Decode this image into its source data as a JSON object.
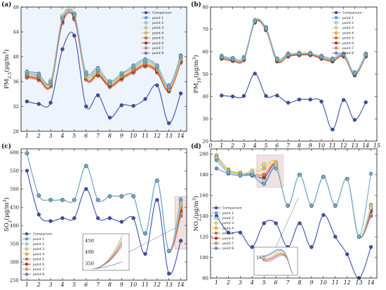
{
  "colors": {
    "Comparison": "#3a4fb0",
    "point 1": "#6aaed6",
    "point 2": "#a9dff0",
    "point 3": "#e8e27a",
    "point 4": "#f0c050",
    "point 5": "#e07a3a",
    "point 6": "#c0302a",
    "point 7": "#d89a88",
    "point 8": "#7a86c8"
  },
  "chart_data": [
    {
      "panel": "(a)",
      "type": "line",
      "ylabel": "PM2.5(μg/m3)",
      "ylim": [
        28,
        48
      ],
      "yticks": [
        28,
        32,
        36,
        40,
        44,
        48
      ],
      "x": [
        1,
        2,
        3,
        4,
        5,
        6,
        7,
        8,
        9,
        10,
        11,
        12,
        13,
        14
      ],
      "xlim": [
        0.5,
        14.5
      ],
      "xticks": [
        1,
        2,
        3,
        4,
        5,
        6,
        7,
        8,
        9,
        10,
        11,
        12,
        13,
        14
      ],
      "legend": [
        "Comparison",
        "point 1",
        "point 2",
        "point 3",
        "point 4",
        "point 5",
        "point 6",
        "point 7",
        "point 8"
      ],
      "legend_position": "top-right",
      "background": "#eef4fb",
      "series": [
        {
          "name": "Comparison",
          "values": [
            32.8,
            32.4,
            32.6,
            41.2,
            43.4,
            32.0,
            33.8,
            30.2,
            32.2,
            32.1,
            33.2,
            35.4,
            29.3,
            34.1
          ]
        },
        {
          "name": "point 1",
          "values": [
            37.3,
            37.0,
            35.9,
            46.1,
            46.7,
            37.2,
            37.8,
            35.9,
            37.2,
            38.3,
            39.3,
            38.3,
            35.1,
            40.1
          ]
        },
        {
          "name": "point 2",
          "values": [
            37.5,
            37.2,
            36.2,
            46.3,
            46.9,
            37.4,
            38.1,
            36.1,
            37.4,
            38.5,
            39.5,
            38.5,
            35.3,
            40.0
          ]
        },
        {
          "name": "point 3",
          "values": [
            37.2,
            36.9,
            35.8,
            46.6,
            47.0,
            37.0,
            37.7,
            35.7,
            37.1,
            38.2,
            39.2,
            38.2,
            35.0,
            39.8
          ]
        },
        {
          "name": "point 4",
          "values": [
            37.1,
            36.8,
            35.6,
            46.3,
            46.8,
            36.8,
            37.5,
            35.6,
            36.9,
            38.0,
            39.0,
            38.0,
            34.8,
            39.6
          ]
        },
        {
          "name": "point 5",
          "values": [
            36.9,
            36.6,
            35.5,
            46.0,
            46.6,
            36.6,
            37.3,
            35.5,
            36.7,
            37.8,
            38.8,
            37.8,
            34.6,
            39.4
          ]
        },
        {
          "name": "point 6",
          "values": [
            36.8,
            36.4,
            35.4,
            45.6,
            46.3,
            36.5,
            37.1,
            35.3,
            36.5,
            37.6,
            38.6,
            37.6,
            34.5,
            39.2
          ]
        },
        {
          "name": "point 7",
          "values": [
            36.6,
            36.2,
            35.2,
            45.4,
            46.1,
            36.3,
            36.9,
            35.1,
            36.3,
            37.4,
            38.4,
            37.4,
            34.4,
            39.0
          ]
        },
        {
          "name": "point 8",
          "values": [
            37.6,
            37.3,
            36.0,
            46.5,
            46.0,
            37.5,
            38.2,
            36.0,
            37.3,
            38.6,
            39.6,
            38.6,
            35.4,
            40.2
          ]
        }
      ]
    },
    {
      "panel": "(b)",
      "type": "line",
      "ylabel": "PM10(μg/m3)",
      "ylim": [
        20,
        80
      ],
      "yticks": [
        20,
        30,
        40,
        50,
        60,
        70,
        80
      ],
      "x": [
        1,
        2,
        3,
        4,
        5,
        6,
        7,
        8,
        9,
        10,
        11,
        12,
        13,
        14
      ],
      "xlim": [
        0,
        15
      ],
      "xticks": [
        0,
        1,
        2,
        3,
        4,
        5,
        6,
        7,
        8,
        9,
        10,
        11,
        12,
        13,
        14,
        15
      ],
      "legend": [
        "Comparison",
        "point 1",
        "point 2",
        "point 3",
        "point 4",
        "point 5",
        "point 6",
        "point 7",
        "point 8"
      ],
      "legend_position": "top-right",
      "background": "#ffffff",
      "series": [
        {
          "name": "Comparison",
          "values": [
            40.4,
            40.0,
            40.2,
            50.2,
            40.2,
            40.4,
            37.2,
            38.6,
            38.6,
            37.7,
            25.2,
            38.4,
            29.5,
            37.4
          ]
        },
        {
          "name": "point 1",
          "values": [
            57.6,
            56.6,
            57.0,
            73.6,
            70.4,
            56.4,
            58.6,
            59.0,
            59.0,
            57.6,
            56.4,
            58.6,
            50.2,
            58.6
          ]
        },
        {
          "name": "point 2",
          "values": [
            58.0,
            57.0,
            57.4,
            74.0,
            70.8,
            56.8,
            59.0,
            59.4,
            59.4,
            58.0,
            56.8,
            59.0,
            50.6,
            59.0
          ]
        },
        {
          "name": "point 3",
          "values": [
            57.8,
            56.8,
            57.2,
            74.2,
            70.6,
            56.6,
            58.8,
            59.6,
            59.6,
            57.8,
            56.6,
            58.8,
            50.4,
            58.8
          ]
        },
        {
          "name": "point 4",
          "values": [
            57.4,
            56.4,
            56.8,
            73.8,
            70.2,
            56.2,
            58.4,
            59.2,
            59.2,
            57.4,
            56.2,
            58.4,
            50.0,
            58.4
          ]
        },
        {
          "name": "point 5",
          "values": [
            57.2,
            56.2,
            56.6,
            73.4,
            70.0,
            56.0,
            58.2,
            58.8,
            58.8,
            57.2,
            56.0,
            58.2,
            49.8,
            58.2
          ]
        },
        {
          "name": "point 6",
          "values": [
            57.0,
            56.0,
            56.4,
            73.2,
            69.8,
            55.8,
            58.0,
            58.6,
            58.6,
            57.0,
            55.8,
            58.0,
            49.6,
            58.0
          ]
        },
        {
          "name": "point 7",
          "values": [
            56.8,
            55.8,
            56.2,
            73.0,
            69.6,
            55.6,
            57.8,
            58.4,
            58.4,
            56.8,
            55.6,
            57.8,
            49.4,
            57.8
          ]
        },
        {
          "name": "point 8",
          "values": [
            58.2,
            57.2,
            57.6,
            73.6,
            71.0,
            57.0,
            59.2,
            59.0,
            59.0,
            58.2,
            57.0,
            59.2,
            50.8,
            59.2
          ]
        }
      ]
    },
    {
      "panel": "(c)",
      "type": "line",
      "ylabel": "SO2(μg/m3)",
      "ylim": [
        250,
        610
      ],
      "yticks": [
        250,
        300,
        350,
        400,
        450,
        500,
        550,
        600
      ],
      "x": [
        1,
        2,
        3,
        4,
        5,
        6,
        7,
        8,
        9,
        10,
        11,
        12,
        13,
        14
      ],
      "xlim": [
        0.5,
        14.5
      ],
      "xticks": [
        1,
        2,
        3,
        4,
        5,
        6,
        7,
        8,
        9,
        10,
        11,
        12,
        13,
        14
      ],
      "legend": [
        "Comparison",
        "point 1",
        "point 2",
        "point 3",
        "point 4",
        "point 5",
        "point 6",
        "point 7",
        "point 8"
      ],
      "legend_position": "bottom-left",
      "background": "#ffffff",
      "highlight_box": {
        "x": [
          13.5,
          14.5
        ],
        "y": [
          335,
          480
        ]
      },
      "inset_yticks": [
        350,
        400,
        450
      ],
      "series": [
        {
          "name": "Comparison",
          "values": [
            550,
            430,
            412,
            420,
            420,
            500,
            420,
            420,
            410,
            420,
            322,
            470,
            268,
            358
          ]
        },
        {
          "name": "point 1",
          "values": [
            598,
            482,
            470,
            470,
            470,
            563,
            470,
            480,
            480,
            480,
            378,
            523,
            330,
            472
          ]
        },
        {
          "name": "point 2",
          "values": [
            598,
            482,
            470,
            470,
            470,
            563,
            470,
            480,
            480,
            480,
            378,
            523,
            330,
            468
          ]
        },
        {
          "name": "point 3",
          "values": [
            598,
            482,
            470,
            470,
            470,
            563,
            470,
            480,
            480,
            480,
            378,
            523,
            330,
            462
          ]
        },
        {
          "name": "point 4",
          "values": [
            598,
            482,
            470,
            470,
            470,
            563,
            470,
            480,
            480,
            480,
            378,
            523,
            330,
            455
          ]
        },
        {
          "name": "point 5",
          "values": [
            598,
            482,
            470,
            470,
            470,
            563,
            470,
            480,
            480,
            480,
            378,
            523,
            330,
            448
          ]
        },
        {
          "name": "point 6",
          "values": [
            598,
            482,
            470,
            470,
            470,
            563,
            470,
            480,
            480,
            480,
            378,
            523,
            330,
            440
          ]
        },
        {
          "name": "point 7",
          "values": [
            598,
            482,
            470,
            470,
            470,
            563,
            470,
            480,
            480,
            480,
            378,
            523,
            330,
            433
          ]
        },
        {
          "name": "point 8",
          "values": [
            598,
            482,
            470,
            470,
            470,
            563,
            470,
            480,
            480,
            480,
            378,
            523,
            330,
            426
          ]
        }
      ]
    },
    {
      "panel": "(d)",
      "type": "line",
      "ylabel": "NO2(μg/m3)",
      "ylim": [
        80,
        205
      ],
      "yticks": [
        80,
        100,
        120,
        140,
        160,
        180,
        200
      ],
      "x": [
        1,
        2,
        3,
        4,
        5,
        6,
        7,
        8,
        9,
        10,
        11,
        12,
        13,
        14
      ],
      "xlim": [
        0.5,
        14.5
      ],
      "xticks": [
        1,
        2,
        3,
        4,
        5,
        6,
        7,
        8,
        9,
        10,
        11,
        12,
        13,
        14
      ],
      "legend": [
        "Comparison",
        "point 1",
        "point 2",
        "point 3",
        "point 4",
        "point 5",
        "point 6",
        "point 7",
        "point 8"
      ],
      "legend_position": "middle-left",
      "background": "#ffffff",
      "highlight_box": {
        "x": [
          4.4,
          6.6
        ],
        "y": [
          168,
          199
        ]
      },
      "inset_label": "166",
      "series": [
        {
          "name": "Comparison",
          "values": [
            140,
            124,
            124,
            110,
            133,
            133,
            110,
            133,
            110,
            141,
            120,
            103,
            80,
            110
          ]
        },
        {
          "name": "point 1",
          "values": [
            194,
            182,
            179,
            180,
            171,
            186,
            150,
            180,
            150,
            178,
            150,
            176,
            120,
            181
          ]
        },
        {
          "name": "point 2",
          "values": [
            196,
            183,
            180,
            182,
            174,
            188,
            150,
            180,
            150,
            178,
            150,
            176,
            120,
            148
          ]
        },
        {
          "name": "point 3",
          "values": [
            197,
            184,
            181,
            184,
            190,
            190,
            150,
            180,
            150,
            178,
            150,
            176,
            120,
            150
          ]
        },
        {
          "name": "point 4",
          "values": [
            199,
            185,
            182,
            182,
            186,
            192,
            150,
            180,
            150,
            178,
            150,
            176,
            120,
            151
          ]
        },
        {
          "name": "point 5",
          "values": [
            198,
            185,
            181,
            181,
            180,
            190,
            150,
            180,
            150,
            178,
            150,
            176,
            120,
            147
          ]
        },
        {
          "name": "point 6",
          "values": [
            197,
            184,
            181,
            180,
            177,
            189,
            150,
            180,
            150,
            178,
            150,
            176,
            120,
            145
          ]
        },
        {
          "name": "point 7",
          "values": [
            196,
            184,
            180,
            180,
            178,
            188,
            150,
            180,
            150,
            178,
            150,
            176,
            120,
            142
          ]
        },
        {
          "name": "point 8",
          "values": [
            186,
            181,
            179,
            179,
            172,
            187,
            150,
            180,
            150,
            178,
            150,
            176,
            120,
            140
          ]
        }
      ]
    }
  ]
}
